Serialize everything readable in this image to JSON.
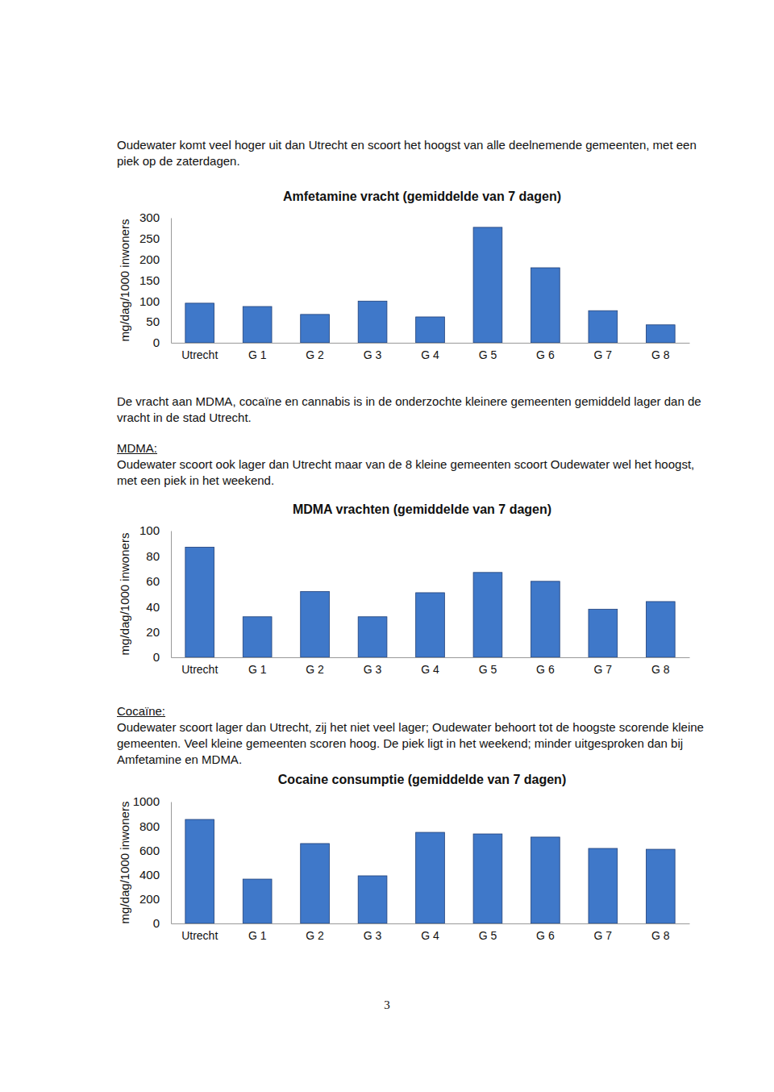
{
  "intro": "Oudewater komt veel hoger uit dan Utrecht en scoort het hoogst van alle deelnemende gemeenten, met een piek op de zaterdagen.",
  "summary": "De vracht aan MDMA, cocaïne en cannabis is in de onderzochte kleinere gemeenten gemiddeld lager dan de vracht in de stad Utrecht.",
  "sections": [
    {
      "heading": "MDMA:",
      "text": "Oudewater scoort ook lager dan Utrecht maar van de 8 kleine gemeenten scoort Oudewater wel het hoogst, met een piek in het weekend."
    },
    {
      "heading": "Cocaïne:",
      "text": "Oudewater scoort lager dan Utrecht, zij het niet veel lager; Oudewater behoort tot de hoogste scorende kleine gemeenten. Veel kleine gemeenten scoren hoog. De piek ligt in het weekend; minder uitgesproken dan bij Amfetamine en MDMA."
    }
  ],
  "page_number": "3",
  "chart_data": [
    {
      "type": "bar",
      "title": "Amfetamine vracht (gemiddelde van 7 dagen)",
      "y_label": "mg/dag/1000 inwoners",
      "categories": [
        "Utrecht",
        "G 1",
        "G 2",
        "G 3",
        "G 4",
        "G 5",
        "G 6",
        "G 7",
        "G 8"
      ],
      "values": [
        95,
        87,
        68,
        100,
        62,
        277,
        180,
        77,
        43
      ],
      "color": "#3f78c9",
      "ylim": [
        0,
        300
      ],
      "yticks": [
        0,
        50,
        100,
        150,
        200,
        250,
        300
      ],
      "grid": false
    },
    {
      "type": "bar",
      "title": "MDMA vrachten (gemiddelde van 7 dagen)",
      "y_label": "mg/dag/1000 inwoners",
      "categories": [
        "Utrecht",
        "G 1",
        "G 2",
        "G 3",
        "G 4",
        "G 5",
        "G 6",
        "G 7",
        "G 8"
      ],
      "values": [
        87,
        32,
        52,
        32,
        51,
        67,
        60,
        38,
        44
      ],
      "color": "#3f78c9",
      "ylim": [
        0,
        100
      ],
      "yticks": [
        0,
        20,
        40,
        60,
        80,
        100
      ],
      "grid": false
    },
    {
      "type": "bar",
      "title": "Cocaine consumptie (gemiddelde van 7 dagen)",
      "y_label": "mg/dag/1000 inwoners",
      "categories": [
        "Utrecht",
        "G 1",
        "G 2",
        "G 3",
        "G 4",
        "G 5",
        "G 6",
        "G 7",
        "G 8"
      ],
      "values": [
        854,
        364,
        656,
        391,
        748,
        735,
        709,
        616,
        609
      ],
      "color": "#3f78c9",
      "ylim": [
        0,
        1000
      ],
      "yticks": [
        0,
        200,
        400,
        600,
        800,
        1000
      ],
      "grid": false
    }
  ]
}
